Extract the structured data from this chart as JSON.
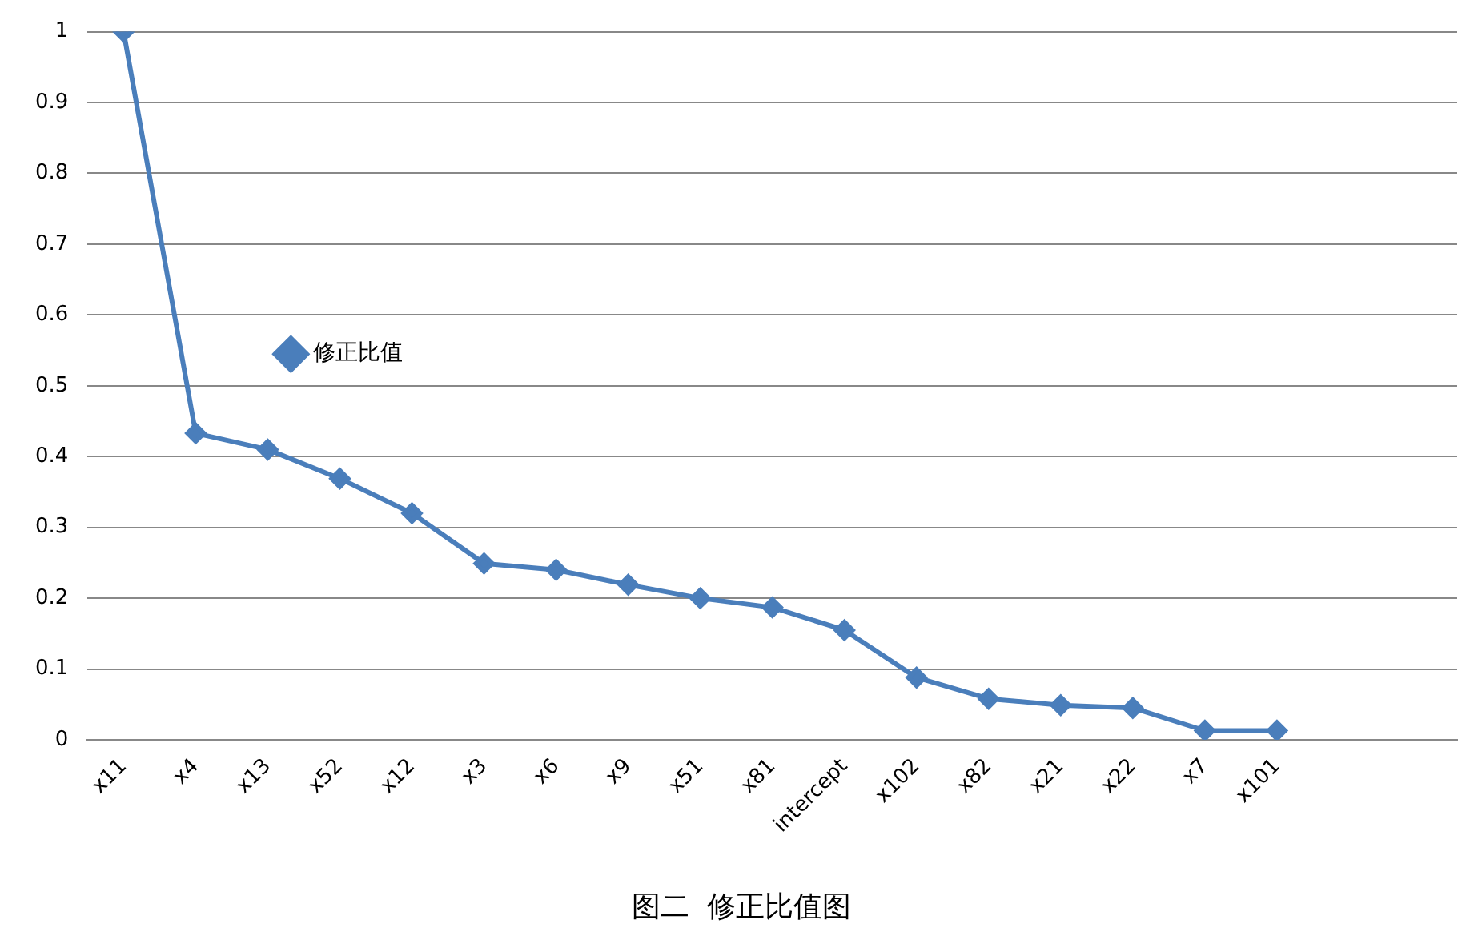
{
  "chart_data": {
    "type": "line",
    "title": "图二  修正比值图",
    "categories": [
      "x11",
      "x4",
      "x13",
      "x52",
      "x12",
      "x3",
      "x6",
      "x9",
      "x51",
      "x81",
      "intercept",
      "x102",
      "x82",
      "x21",
      "x22",
      "x7",
      "x101",
      null,
      null
    ],
    "series": [
      {
        "name": "修正比值",
        "color": "#4a7ebb",
        "values": [
          1,
          0.433,
          0.41,
          0.369,
          0.32,
          0.249,
          0.24,
          0.219,
          0.2,
          0.187,
          0.155,
          0.088,
          0.058,
          0.049,
          0.045,
          0.013,
          0.013,
          null,
          null
        ]
      }
    ],
    "ylim": [
      0,
      1
    ],
    "yticks": [
      0,
      0.1,
      0.2,
      0.3,
      0.4,
      0.5,
      0.6,
      0.7,
      0.8,
      0.9,
      1
    ],
    "grid": "y",
    "legend": "top",
    "marker": "diamond",
    "line_style": "solid"
  }
}
